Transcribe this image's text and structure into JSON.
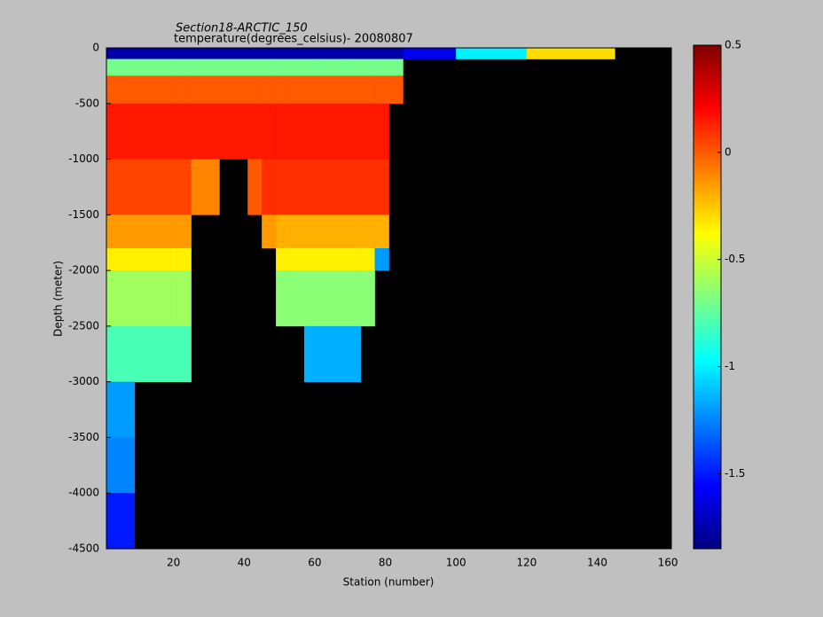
{
  "chart_data": {
    "type": "heatmap",
    "title": "Section18-ARCTIC_150",
    "subtitle": "temperature(degrees_celsius)- 20080807",
    "x_label": "Station (number)",
    "y_label": "Depth (meter)",
    "colormap": "jet",
    "missing_color": "#000000",
    "x_edges": [
      1,
      5,
      9,
      13,
      17,
      21,
      25,
      29,
      33,
      37,
      41,
      45,
      49,
      53,
      57,
      61,
      65,
      69,
      73,
      77,
      81,
      85,
      100,
      120,
      145,
      160
    ],
    "y_edges": [
      0,
      -100,
      -250,
      -500,
      -1000,
      -1500,
      -1800,
      -2000,
      -2500,
      -3000,
      -3500,
      -4000,
      -4500
    ],
    "values": [
      [
        -1.75,
        -1.75,
        -1.75,
        -1.75,
        -1.75,
        -1.75,
        -1.75,
        -1.75,
        -1.75,
        -1.75,
        -1.75,
        -1.75,
        -1.75,
        -1.75,
        -1.75,
        -1.75,
        -1.75,
        -1.75,
        -1.75,
        -1.75,
        -1.75,
        -1.6,
        -1.0,
        -0.3,
        null
      ],
      [
        -0.7,
        -0.7,
        -0.7,
        -0.7,
        -0.7,
        -0.7,
        -0.7,
        -0.7,
        -0.7,
        -0.7,
        -0.7,
        -0.7,
        -0.7,
        -0.7,
        -0.7,
        -0.7,
        -0.7,
        -0.7,
        -0.7,
        -0.7,
        -0.7,
        null,
        null,
        null,
        null
      ],
      [
        0.0,
        0.0,
        0.0,
        0.0,
        0.0,
        0.0,
        0.0,
        0.0,
        0.0,
        0.0,
        0.0,
        0.0,
        0.0,
        0.0,
        0.0,
        0.0,
        0.0,
        0.0,
        0.0,
        0.0,
        0.0,
        null,
        null,
        null,
        null
      ],
      [
        0.15,
        0.15,
        0.15,
        0.15,
        0.15,
        0.15,
        0.15,
        0.15,
        0.15,
        0.15,
        0.15,
        0.15,
        0.15,
        0.15,
        0.15,
        0.15,
        0.15,
        0.15,
        0.15,
        0.15,
        null,
        null,
        null,
        null,
        null
      ],
      [
        0.05,
        0.05,
        0.05,
        0.05,
        0.05,
        0.05,
        -0.1,
        -0.1,
        null,
        null,
        0.0,
        0.1,
        0.1,
        0.1,
        0.1,
        0.1,
        0.1,
        0.1,
        0.1,
        0.1,
        null,
        null,
        null,
        null,
        null
      ],
      [
        -0.15,
        -0.15,
        -0.15,
        -0.15,
        -0.15,
        -0.15,
        null,
        null,
        null,
        null,
        null,
        -0.15,
        -0.2,
        -0.2,
        -0.2,
        -0.2,
        -0.2,
        -0.2,
        -0.2,
        -0.2,
        null,
        null,
        null,
        null,
        null
      ],
      [
        -0.35,
        -0.35,
        -0.35,
        -0.35,
        -0.35,
        -0.35,
        null,
        null,
        null,
        null,
        null,
        null,
        -0.35,
        -0.35,
        -0.35,
        -0.35,
        -0.35,
        -0.35,
        -0.35,
        -1.2,
        null,
        null,
        null,
        null,
        null
      ],
      [
        -0.6,
        -0.6,
        -0.6,
        -0.6,
        -0.6,
        -0.6,
        null,
        null,
        null,
        null,
        null,
        null,
        -0.65,
        -0.65,
        -0.65,
        -0.65,
        -0.65,
        -0.65,
        -0.65,
        null,
        null,
        null,
        null,
        null,
        null
      ],
      [
        -0.8,
        -0.8,
        -0.8,
        -0.8,
        -0.8,
        -0.8,
        null,
        null,
        null,
        null,
        null,
        null,
        null,
        null,
        -1.15,
        -1.15,
        -1.15,
        -1.15,
        null,
        null,
        null,
        null,
        null,
        null,
        null
      ],
      [
        -1.2,
        -1.2,
        null,
        null,
        null,
        null,
        null,
        null,
        null,
        null,
        null,
        null,
        null,
        null,
        null,
        null,
        null,
        null,
        null,
        null,
        null,
        null,
        null,
        null,
        null
      ],
      [
        -1.25,
        -1.25,
        null,
        null,
        null,
        null,
        null,
        null,
        null,
        null,
        null,
        null,
        null,
        null,
        null,
        null,
        null,
        null,
        null,
        null,
        null,
        null,
        null,
        null,
        null
      ],
      [
        -1.5,
        -1.5,
        null,
        null,
        null,
        null,
        null,
        null,
        null,
        null,
        null,
        null,
        null,
        null,
        null,
        null,
        null,
        null,
        null,
        null,
        null,
        null,
        null,
        null,
        null
      ]
    ],
    "xlim": [
      1,
      161
    ],
    "xticks": [
      20,
      40,
      60,
      80,
      100,
      120,
      140,
      160
    ],
    "ylim": [
      -4500,
      0
    ],
    "yticks": [
      -4500,
      -4000,
      -3500,
      -3000,
      -2500,
      -2000,
      -1500,
      -1000,
      -500,
      0
    ],
    "clim": [
      -1.85,
      0.5
    ],
    "cticks": [
      -1.5,
      -1,
      -0.5,
      0,
      0.5
    ]
  }
}
